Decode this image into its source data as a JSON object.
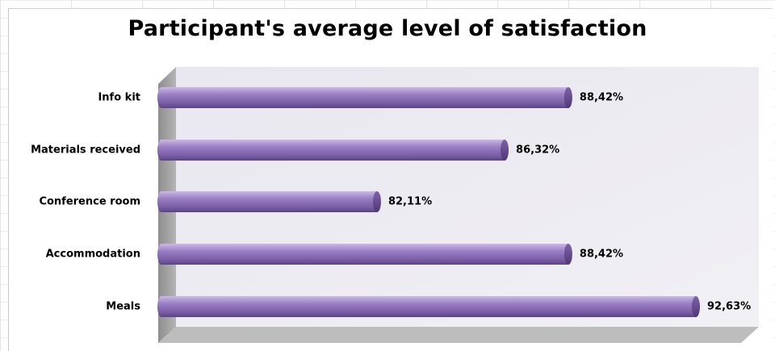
{
  "chart_data": {
    "type": "bar",
    "orientation": "horizontal",
    "title": "Participant's average level of satisfaction",
    "categories": [
      "Info kit",
      "Materials received",
      "Conference room",
      "Accommodation",
      "Meals"
    ],
    "values": [
      88.42,
      86.32,
      82.11,
      88.42,
      92.63
    ],
    "value_labels": [
      "88,42%",
      "86,32%",
      "82,11%",
      "88,42%",
      "92,63%"
    ],
    "xlim": [
      75,
      93
    ],
    "bar_color": "#8f73b8",
    "grid": false,
    "legend": "none"
  }
}
